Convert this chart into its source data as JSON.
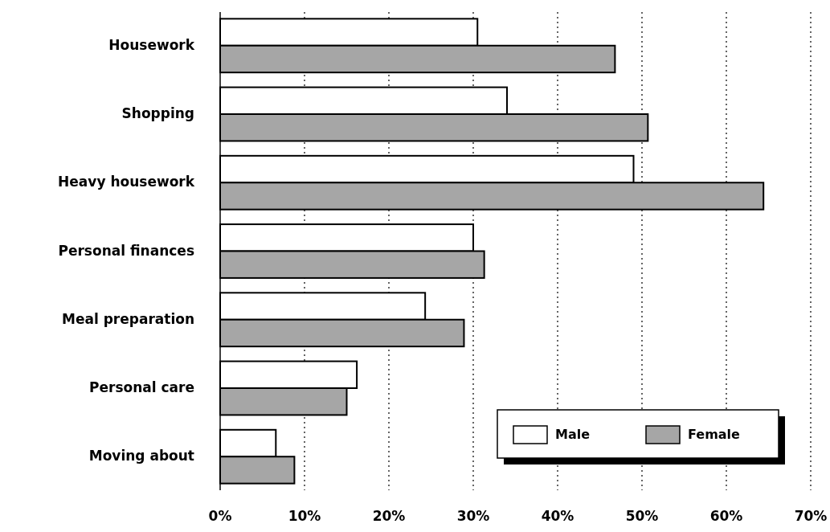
{
  "chart_data": {
    "type": "bar",
    "orientation": "horizontal",
    "categories": [
      "Housework",
      "Shopping",
      "Heavy housework",
      "Personal finances",
      "Meal preparation",
      "Personal care",
      "Moving about"
    ],
    "series": [
      {
        "name": "Male",
        "color": "#ffffff",
        "values": [
          30.5,
          34.0,
          49.0,
          30.0,
          24.3,
          16.2,
          6.6
        ]
      },
      {
        "name": "Female",
        "color": "#a6a6a6",
        "values": [
          46.8,
          50.7,
          64.4,
          31.3,
          28.9,
          15.0,
          8.8
        ]
      }
    ],
    "xlim": [
      0,
      70
    ],
    "xticks": [
      {
        "value": 0,
        "label": "0%"
      },
      {
        "value": 10,
        "label": "10%"
      },
      {
        "value": 20,
        "label": "20%"
      },
      {
        "value": 30,
        "label": "30%"
      },
      {
        "value": 40,
        "label": "40%"
      },
      {
        "value": 50,
        "label": "50%"
      },
      {
        "value": 60,
        "label": "60%"
      },
      {
        "value": 70,
        "label": "70%"
      }
    ],
    "grid": "x",
    "legend": "bottom right"
  }
}
